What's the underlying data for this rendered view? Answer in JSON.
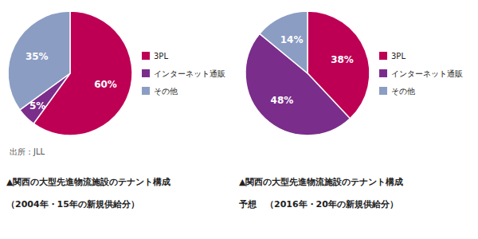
{
  "chart_data": [
    {
      "type": "pie",
      "title": "▲関西の大型先進物流施設のテナント構成",
      "subtitle": "（2004年・15年の新規供給分）",
      "annotations": [
        "出所：JLL"
      ],
      "categories": [
        "3PL",
        "インターネット通販",
        "その他"
      ],
      "values": [
        60,
        5,
        35
      ],
      "value_labels": [
        "60%",
        "5%",
        "35%"
      ],
      "data_labels": true,
      "colors": [
        "#be0055",
        "#7b2d8b",
        "#8b9dc3"
      ],
      "legend": "right"
    },
    {
      "type": "pie",
      "title": "▲関西の大型先進物流施設のテナント構成",
      "subtitle": "予想　（2016年・20年の新規供給分）",
      "categories": [
        "3PL",
        "インターネット通販",
        "その他"
      ],
      "values": [
        38,
        48,
        14
      ],
      "value_labels": [
        "38%",
        "48%",
        "14%"
      ],
      "data_labels": true,
      "colors": [
        "#be0055",
        "#7b2d8b",
        "#8b9dc3"
      ],
      "legend": "right"
    }
  ]
}
